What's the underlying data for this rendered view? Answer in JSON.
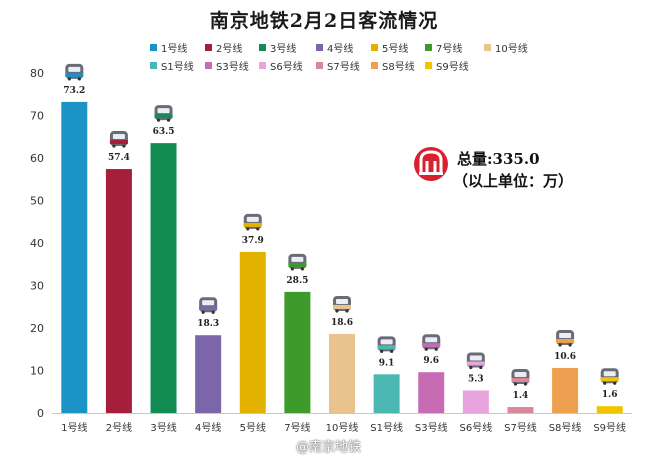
{
  "colors": {
    "background": "#ffffff",
    "axis_text": "#333333",
    "logo_red": "#d9202f"
  },
  "summary": {
    "total_label": "总量:335.0",
    "unit_note": "（以上单位：万）"
  },
  "watermark": "@南京地铁",
  "chart_data": {
    "type": "bar",
    "title": "南京地铁2月2日客流情况",
    "categories": [
      "1号线",
      "2号线",
      "3号线",
      "4号线",
      "5号线",
      "7号线",
      "10号线",
      "S1号线",
      "S3号线",
      "S6号线",
      "S7号线",
      "S8号线",
      "S9号线"
    ],
    "values": [
      73.2,
      57.4,
      63.5,
      18.3,
      37.9,
      28.5,
      18.6,
      9.1,
      9.6,
      5.3,
      1.4,
      10.6,
      1.6
    ],
    "value_labels": [
      "73.2",
      "57.4",
      "63.5",
      "18.3",
      "37.9",
      "28.5",
      "18.6",
      "9.1",
      "9.6",
      "5.3",
      "1.4",
      "10.6",
      "1.6"
    ],
    "colors": [
      "#1b93c6",
      "#a51f3c",
      "#138c54",
      "#7a66a8",
      "#e3b100",
      "#3e9a2a",
      "#e8c48c",
      "#4ab7b3",
      "#c76bb5",
      "#e8a4dc",
      "#d98898",
      "#eda050",
      "#f1c400"
    ],
    "legend": [
      "1号线",
      "2号线",
      "3号线",
      "4号线",
      "5号线",
      "7号线",
      "10号线",
      "S1号线",
      "S3号线",
      "S6号线",
      "S7号线",
      "S8号线",
      "S9号线"
    ],
    "legend_position": "top",
    "ylim": [
      0,
      80
    ],
    "yticks": [
      "0",
      "10",
      "20",
      "30",
      "40",
      "50",
      "60",
      "70",
      "80"
    ],
    "xlabel": "",
    "ylabel": "",
    "grid": false
  }
}
